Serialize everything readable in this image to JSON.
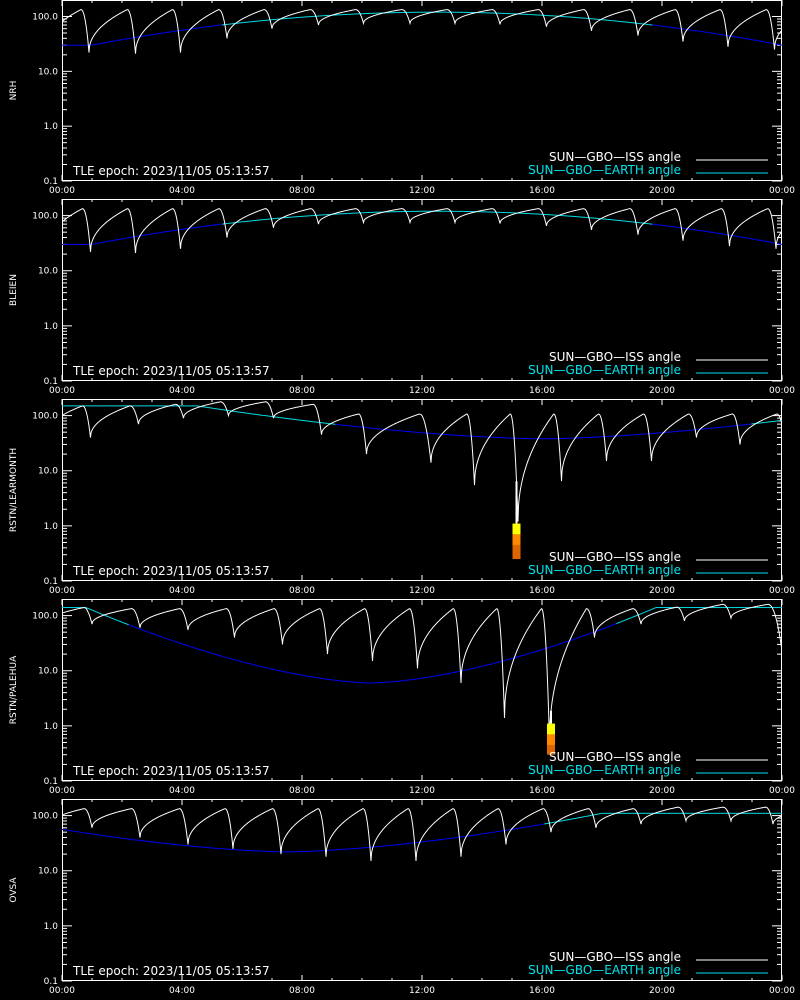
{
  "figure": {
    "background": "#000000",
    "frame_color": "#ffffff",
    "colors": {
      "iss": "#ffffff",
      "earth_high": "#00e5ee",
      "earth_low": "#0000ff",
      "marker_yellow": "#ffff00",
      "marker_orange": "#ff8800"
    },
    "legend": {
      "iss": "SUN—GBO—ISS angle",
      "earth": "SUN—GBO—EARTH angle"
    },
    "epoch_text": "TLE epoch: 2023/11/05 05:13:57"
  },
  "chart_data": [
    {
      "type": "line",
      "ylabel": "NRH",
      "xlabel": "",
      "scale": "log",
      "ylim": [
        0.1,
        200
      ],
      "xlim": [
        0,
        24
      ],
      "xticks": [
        "00:00",
        "04:00",
        "08:00",
        "12:00",
        "16:00",
        "20:00",
        "00:00"
      ],
      "yticks": [
        "0.1",
        "1.0",
        "10.0",
        "100.0"
      ],
      "series": [
        {
          "name": "SUN—GBO—ISS angle",
          "iss": true,
          "min_x": [
            0.9,
            2.45,
            3.95,
            5.5,
            7.0,
            8.55,
            10.05,
            11.6,
            13.1,
            14.6,
            16.15,
            17.65,
            19.2,
            20.7,
            22.2,
            23.75
          ],
          "min_y": [
            22,
            21,
            22,
            40,
            60,
            70,
            75,
            75,
            75,
            72,
            65,
            55,
            45,
            35,
            28,
            25
          ],
          "peak": 150
        },
        {
          "name": "SUN—GBO—EARTH angle",
          "center": 12.5,
          "base": 120,
          "end": 30,
          "width": 11.5
        }
      ]
    },
    {
      "type": "line",
      "ylabel": "BLEIEN",
      "xlabel": "",
      "scale": "log",
      "ylim": [
        0.1,
        200
      ],
      "xlim": [
        0,
        24
      ],
      "xticks": [
        "00:00",
        "04:00",
        "08:00",
        "12:00",
        "16:00",
        "20:00",
        "00:00"
      ],
      "yticks": [
        "0.1",
        "1.0",
        "10.0",
        "100.0"
      ],
      "series": [
        {
          "name": "SUN—GBO—ISS angle",
          "iss": true,
          "min_x": [
            0.95,
            2.45,
            3.95,
            5.5,
            7.05,
            8.55,
            10.05,
            11.6,
            13.1,
            14.6,
            16.15,
            17.65,
            19.2,
            20.7,
            22.25,
            23.8
          ],
          "min_y": [
            22,
            21,
            25,
            40,
            60,
            70,
            75,
            75,
            75,
            72,
            65,
            55,
            45,
            35,
            28,
            25
          ],
          "peak": 150
        },
        {
          "name": "SUN—GBO—EARTH angle",
          "center": 12.5,
          "base": 120,
          "end": 30,
          "width": 11.5
        }
      ]
    },
    {
      "type": "line",
      "ylabel": "RSTN/LEARMONTH",
      "xlabel": "",
      "scale": "log",
      "ylim": [
        0.1,
        200
      ],
      "xlim": [
        0,
        24
      ],
      "xticks": [
        "00:00",
        "04:00",
        "08:00",
        "12:00",
        "16:00",
        "20:00",
        "00:00"
      ],
      "yticks": [
        "0.1",
        "1.0",
        "10.0",
        "100.0"
      ],
      "series": [
        {
          "name": "SUN—GBO—ISS angle",
          "iss": true,
          "min_x": [
            0.95,
            2.55,
            4.05,
            5.55,
            7.05,
            8.65,
            10.15,
            12.3,
            13.75,
            15.2,
            16.65,
            18.15,
            19.65,
            21.15,
            22.6
          ],
          "min_y": [
            40,
            70,
            90,
            100,
            90,
            45,
            20,
            14,
            5.5,
            1.2,
            6.5,
            15,
            15,
            40,
            30
          ],
          "peak": 120
        },
        {
          "name": "SUN—GBO—EARTH angle",
          "center": 16.0,
          "base": 38,
          "end": 150,
          "width": 11.5,
          "dip": true
        }
      ],
      "marker": {
        "x": 15.15,
        "levels": [
          1.1,
          0.7,
          0.45,
          0.25
        ]
      }
    },
    {
      "type": "line",
      "ylabel": "RSTN/PALEHUA",
      "xlabel": "",
      "scale": "log",
      "ylim": [
        0.1,
        200
      ],
      "xlim": [
        0,
        24
      ],
      "xticks": [
        "00:00",
        "04:00",
        "08:00",
        "12:00",
        "16:00",
        "20:00",
        "00:00"
      ],
      "yticks": [
        "0.1",
        "1.0",
        "10.0",
        "100.0"
      ],
      "series": [
        {
          "name": "SUN—GBO—ISS angle",
          "iss": true,
          "min_x": [
            1.0,
            2.6,
            4.2,
            5.75,
            7.35,
            8.85,
            10.35,
            11.85,
            13.3,
            14.75,
            16.25,
            17.75,
            19.3,
            20.75,
            22.3
          ],
          "min_y": [
            70,
            60,
            55,
            40,
            30,
            20,
            15,
            11,
            6,
            1.4,
            0.5,
            40,
            70,
            80,
            90
          ],
          "peak": 150
        },
        {
          "name": "SUN—GBO—EARTH angle",
          "center": 10.3,
          "base": 6,
          "end": 140,
          "width": 9.5,
          "dip": true
        }
      ],
      "marker": {
        "x": 16.3,
        "levels": [
          1.1,
          0.7,
          0.45,
          0.3
        ]
      }
    },
    {
      "type": "line",
      "ylabel": "OVSA",
      "xlabel": "",
      "scale": "log",
      "ylim": [
        0.1,
        200
      ],
      "xlim": [
        0,
        24
      ],
      "xticks": [
        "00:00",
        "04:00",
        "08:00",
        "12:00",
        "16:00",
        "20:00",
        "00:00"
      ],
      "yticks": [
        "0.1",
        "1.0",
        "10.0",
        "100.0"
      ],
      "series": [
        {
          "name": "SUN—GBO—ISS angle",
          "iss": true,
          "min_x": [
            1.0,
            2.6,
            4.2,
            5.7,
            7.3,
            8.8,
            10.3,
            11.8,
            13.3,
            14.8,
            16.3,
            17.8,
            19.3,
            20.8,
            22.3,
            23.7
          ],
          "min_y": [
            60,
            40,
            30,
            25,
            20,
            18,
            15,
            15,
            18,
            30,
            50,
            60,
            70,
            80,
            80,
            70
          ],
          "peak": 150
        },
        {
          "name": "SUN—GBO—EARTH angle",
          "center": 7.5,
          "base": 22,
          "end": 110,
          "width": 10.5,
          "dip": true
        }
      ]
    }
  ]
}
